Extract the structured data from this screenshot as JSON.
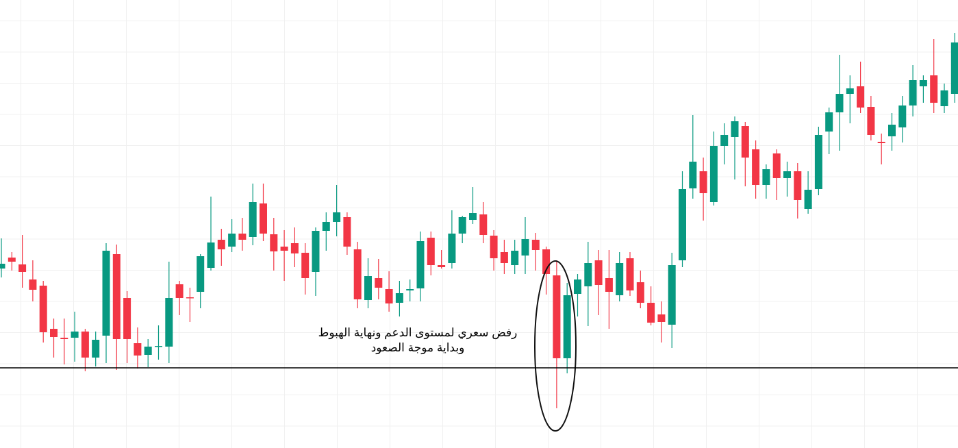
{
  "chart_data": {
    "type": "candlestick",
    "open": [
      262,
      278,
      268,
      246,
      237,
      174,
      161,
      161,
      170,
      132,
      164,
      283,
      219,
      153,
      136,
      148,
      148,
      239,
      220,
      228,
      263,
      304,
      294,
      313,
      308,
      357,
      312,
      294,
      299,
      285,
      257,
      317,
      330,
      337,
      290,
      216,
      248,
      232,
      212,
      230,
      233,
      307,
      267,
      270,
      313,
      333,
      341,
      310,
      286,
      267,
      281,
      304,
      290,
      252,
      131,
      225,
      236,
      274,
      248,
      223,
      277,
      242,
      212,
      195,
      180,
      274,
      379,
      404,
      359,
      441,
      454,
      470,
      436,
      384,
      430,
      394,
      404,
      349,
      378,
      462,
      490,
      517,
      528,
      498,
      447,
      455,
      468,
      500,
      528,
      544,
      499,
      517
    ],
    "high": [
      306,
      286,
      311,
      274,
      244,
      189,
      189,
      199,
      174,
      170,
      299,
      297,
      229,
      176,
      159,
      179,
      272,
      244,
      234,
      283,
      367,
      320,
      334,
      336,
      386,
      386,
      336,
      318,
      322,
      299,
      322,
      344,
      384,
      344,
      301,
      277,
      276,
      258,
      244,
      246,
      316,
      316,
      289,
      347,
      339,
      381,
      359,
      318,
      304,
      304,
      337,
      314,
      294,
      274,
      241,
      254,
      301,
      289,
      289,
      286,
      286,
      259,
      236,
      214,
      285,
      404,
      486,
      424,
      462,
      474,
      484,
      476,
      449,
      414,
      436,
      418,
      416,
      404,
      469,
      497,
      574,
      544,
      564,
      514,
      459,
      489,
      514,
      559,
      544,
      597,
      532,
      606
    ],
    "low": [
      249,
      259,
      234,
      214,
      154,
      132,
      122,
      126,
      112,
      119,
      124,
      114,
      124,
      116,
      118,
      129,
      124,
      194,
      184,
      204,
      259,
      266,
      286,
      288,
      296,
      302,
      259,
      244,
      264,
      224,
      222,
      288,
      309,
      282,
      204,
      204,
      217,
      199,
      192,
      214,
      214,
      252,
      262,
      262,
      299,
      327,
      299,
      259,
      254,
      254,
      254,
      259,
      224,
      58,
      109,
      192,
      178,
      194,
      174,
      214,
      222,
      204,
      179,
      154,
      146,
      264,
      364,
      332,
      354,
      414,
      392,
      382,
      364,
      364,
      362,
      367,
      335,
      342,
      369,
      429,
      434,
      474,
      489,
      449,
      414,
      434,
      446,
      484,
      504,
      489,
      489,
      504
    ],
    "close": [
      269,
      272,
      257,
      231,
      169,
      162,
      159,
      170,
      132,
      158,
      288,
      159,
      159,
      135,
      148,
      149,
      219,
      219,
      219,
      280,
      300,
      290,
      313,
      304,
      359,
      313,
      287,
      288,
      284,
      248,
      317,
      330,
      344,
      294,
      217,
      251,
      234,
      211,
      226,
      232,
      302,
      267,
      264,
      313,
      337,
      343,
      311,
      277,
      270,
      288,
      305,
      289,
      254,
      131,
      223,
      246,
      270,
      238,
      228,
      270,
      230,
      212,
      183,
      184,
      267,
      378,
      418,
      372,
      441,
      457,
      477,
      424,
      384,
      407,
      394,
      404,
      362,
      377,
      457,
      490,
      517,
      525,
      497,
      457,
      445,
      472,
      500,
      537,
      537,
      504,
      522,
      592
    ],
    "ylim": [
      0,
      654
    ],
    "up_color": "#089981",
    "down_color": "#f23645",
    "support_level": 117,
    "annotation": [
      "رفض سعري لمستوى الدعم ونهاية الهبوط",
      "وبداية موجة الصعود"
    ]
  }
}
